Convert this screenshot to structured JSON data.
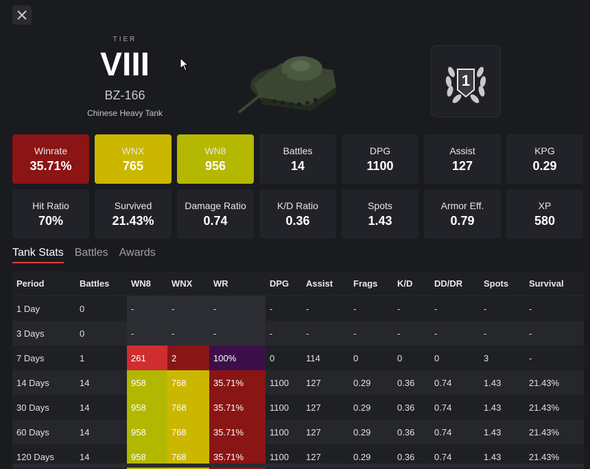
{
  "header": {
    "tier_label": "TIER",
    "tier_value": "VIII",
    "tank_name": "BZ-166",
    "tank_type": "Chinese Heavy Tank",
    "mastery_value": "1"
  },
  "stats": [
    {
      "label": "Winrate",
      "value": "35.71%",
      "color": "#8b1414"
    },
    {
      "label": "WNX",
      "value": "765",
      "color": "#cbb700"
    },
    {
      "label": "WN8",
      "value": "956",
      "color": "#b5b800"
    },
    {
      "label": "Battles",
      "value": "14"
    },
    {
      "label": "DPG",
      "value": "1100"
    },
    {
      "label": "Assist",
      "value": "127"
    },
    {
      "label": "KPG",
      "value": "0.29"
    },
    {
      "label": "Hit Ratio",
      "value": "70%"
    },
    {
      "label": "Survived",
      "value": "21.43%"
    },
    {
      "label": "Damage Ratio",
      "value": "0.74"
    },
    {
      "label": "K/D Ratio",
      "value": "0.36"
    },
    {
      "label": "Spots",
      "value": "1.43"
    },
    {
      "label": "Armor Eff.",
      "value": "0.79"
    },
    {
      "label": "XP",
      "value": "580"
    }
  ],
  "tabs": [
    {
      "label": "Tank Stats",
      "active": true
    },
    {
      "label": "Battles",
      "active": false
    },
    {
      "label": "Awards",
      "active": false
    }
  ],
  "table": {
    "headers": [
      "Period",
      "Battles",
      "WN8",
      "WNX",
      "WR",
      "DPG",
      "Assist",
      "Frags",
      "K/D",
      "DD/DR",
      "Spots",
      "Survival"
    ],
    "rows": [
      [
        "1 Day",
        "0",
        "-",
        "-",
        "-",
        "-",
        "-",
        "-",
        "-",
        "-",
        "-",
        "-"
      ],
      [
        "3 Days",
        "0",
        "-",
        "-",
        "-",
        "-",
        "-",
        "-",
        "-",
        "-",
        "-",
        "-"
      ],
      [
        "7 Days",
        "1",
        "261",
        "2",
        "100%",
        "0",
        "114",
        "0",
        "0",
        "0",
        "3",
        "-"
      ],
      [
        "14 Days",
        "14",
        "958",
        "768",
        "35.71%",
        "1100",
        "127",
        "0.29",
        "0.36",
        "0.74",
        "1.43",
        "21.43%"
      ],
      [
        "30 Days",
        "14",
        "958",
        "768",
        "35.71%",
        "1100",
        "127",
        "0.29",
        "0.36",
        "0.74",
        "1.43",
        "21.43%"
      ],
      [
        "60 Days",
        "14",
        "958",
        "768",
        "35.71%",
        "1100",
        "127",
        "0.29",
        "0.36",
        "0.74",
        "1.43",
        "21.43%"
      ],
      [
        "120 Days",
        "14",
        "958",
        "768",
        "35.71%",
        "1100",
        "127",
        "0.29",
        "0.36",
        "0.74",
        "1.43",
        "21.43%"
      ]
    ]
  }
}
